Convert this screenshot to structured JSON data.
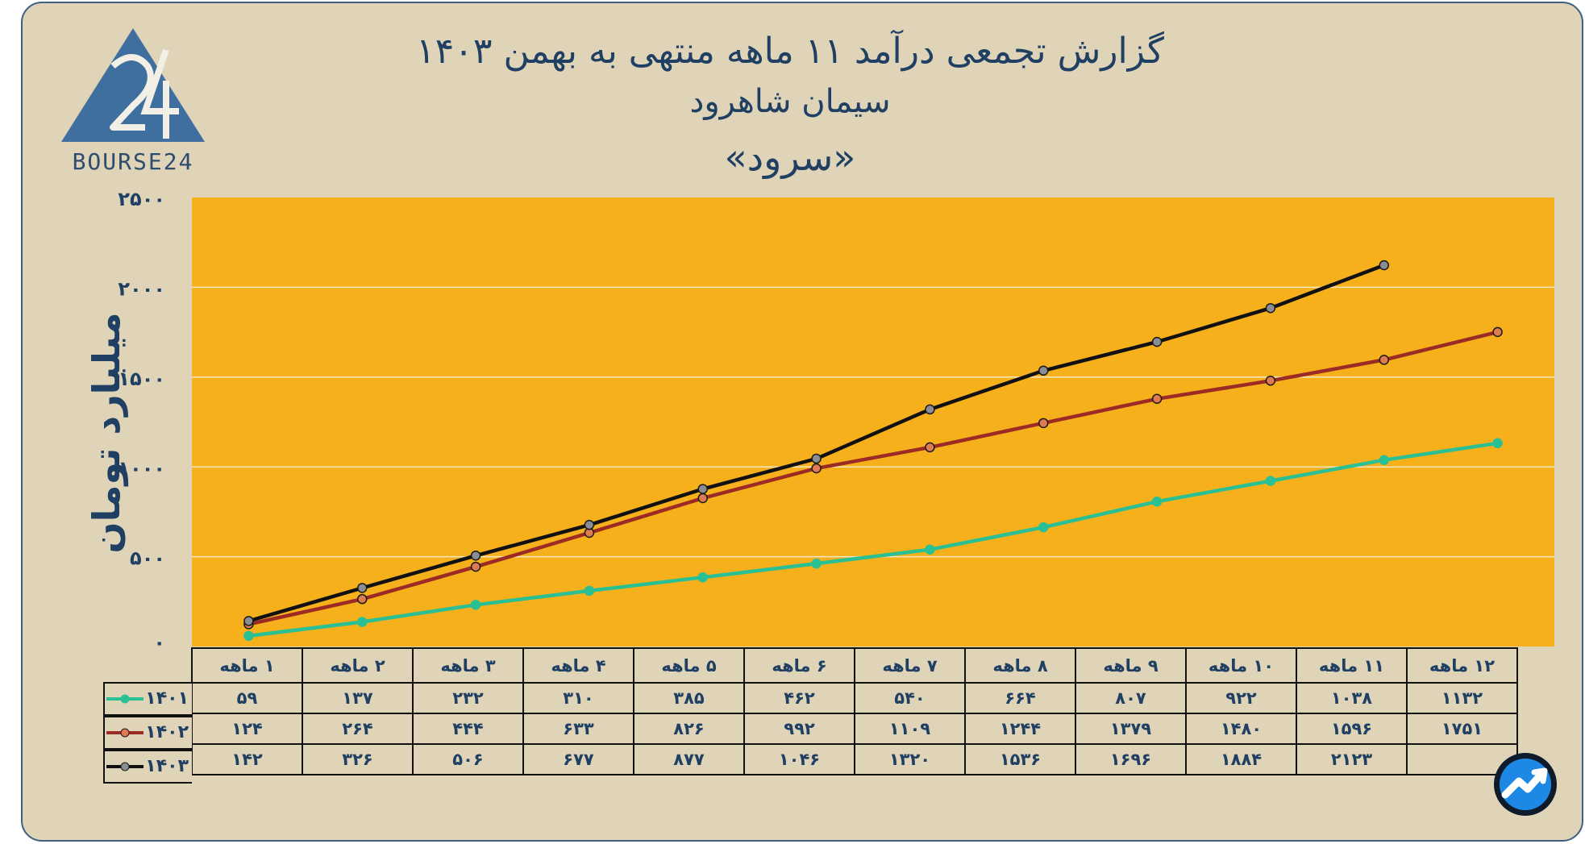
{
  "title": {
    "line1": "گزارش تجمعی درآمد ۱۱ ماهه منتهی به بهمن ۱۴۰۳",
    "line2": "سیمان شاهرود",
    "line3": "«سرود»"
  },
  "logo": {
    "text": "BOURSE24"
  },
  "colors": {
    "frame_bg": "#dfd3b8",
    "plot_bg": "#f5b01c",
    "text": "#1f3f63",
    "s1401": "#2bbf94",
    "s1402": "#9b2b24",
    "s1403": "#111111"
  },
  "chart_data": {
    "type": "line",
    "ylabel": "میلیارد تومان",
    "ylim": [
      0,
      2500
    ],
    "yticks": [
      0,
      500,
      1000,
      1500,
      2000,
      2500
    ],
    "ytick_labels": [
      "۰",
      "۵۰۰",
      "۱۰۰۰",
      "۱۵۰۰",
      "۲۰۰۰",
      "۲۵۰۰"
    ],
    "grid": true,
    "categories": [
      "۱ ماهه",
      "۲ ماهه",
      "۳ ماهه",
      "۴ ماهه",
      "۵ ماهه",
      "۶ ماهه",
      "۷ ماهه",
      "۸ ماهه",
      "۹ ماهه",
      "۱۰ ماهه",
      "۱۱ ماهه",
      "۱۲ ماهه"
    ],
    "series": [
      {
        "name": "۱۴۰۱",
        "color": "#2bbf94",
        "values": [
          59,
          137,
          232,
          310,
          385,
          462,
          540,
          664,
          807,
          922,
          1038,
          1132
        ],
        "labels": [
          "۵۹",
          "۱۳۷",
          "۲۳۲",
          "۳۱۰",
          "۳۸۵",
          "۴۶۲",
          "۵۴۰",
          "۶۶۴",
          "۸۰۷",
          "۹۲۲",
          "۱۰۳۸",
          "۱۱۳۲"
        ]
      },
      {
        "name": "۱۴۰۲",
        "color": "#9b2b24",
        "values": [
          124,
          264,
          444,
          633,
          826,
          992,
          1109,
          1244,
          1379,
          1480,
          1596,
          1751
        ],
        "labels": [
          "۱۲۴",
          "۲۶۴",
          "۴۴۴",
          "۶۳۳",
          "۸۲۶",
          "۹۹۲",
          "۱۱۰۹",
          "۱۲۴۴",
          "۱۳۷۹",
          "۱۴۸۰",
          "۱۵۹۶",
          "۱۷۵۱"
        ]
      },
      {
        "name": "۱۴۰۳",
        "color": "#111111",
        "values": [
          142,
          326,
          506,
          677,
          877,
          1046,
          1320,
          1536,
          1696,
          1884,
          2123,
          null
        ],
        "labels": [
          "۱۴۲",
          "۳۲۶",
          "۵۰۶",
          "۶۷۷",
          "۸۷۷",
          "۱۰۴۶",
          "۱۳۲۰",
          "۱۵۳۶",
          "۱۶۹۶",
          "۱۸۸۴",
          "۲۱۲۳",
          ""
        ]
      }
    ]
  }
}
